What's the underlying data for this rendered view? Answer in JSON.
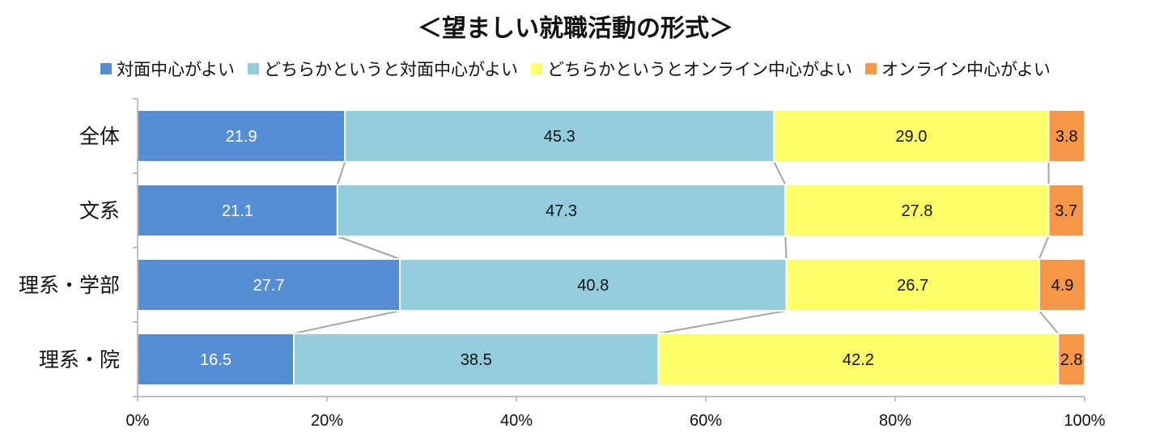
{
  "chart_data": {
    "type": "bar",
    "orientation": "horizontal",
    "stacked": "percent",
    "title": "＜望ましい就職活動の形式＞",
    "categories": [
      "全体",
      "文系",
      "理系・学部",
      "理系・院"
    ],
    "series": [
      {
        "name": "対面中心がよい",
        "color": "#558ED5",
        "values": [
          21.9,
          21.1,
          27.7,
          16.5
        ]
      },
      {
        "name": "どちらかというと対面中心がよい",
        "color": "#93CDDD",
        "values": [
          45.3,
          47.3,
          40.8,
          38.5
        ]
      },
      {
        "name": "どちらかというとオンライン中心がよい",
        "color": "#FFFF66",
        "values": [
          29.0,
          27.8,
          26.7,
          42.2
        ]
      },
      {
        "name": "オンライン中心がよい",
        "color": "#F79646",
        "values": [
          3.8,
          3.7,
          4.9,
          2.8
        ]
      }
    ],
    "data_labels": [
      [
        "21.9",
        "45.3",
        "29.0",
        "3.8"
      ],
      [
        "21.1",
        "47.3",
        "27.8",
        "3.7"
      ],
      [
        "27.7",
        "40.8",
        "26.7",
        "4.9"
      ],
      [
        "16.5",
        "38.5",
        "42.2",
        "2.8"
      ]
    ],
    "x_ticks": [
      "0%",
      "20%",
      "40%",
      "60%",
      "80%",
      "100%"
    ],
    "xlim": [
      0,
      100
    ],
    "legend_position": "top",
    "grid": false,
    "series_lines": true
  }
}
